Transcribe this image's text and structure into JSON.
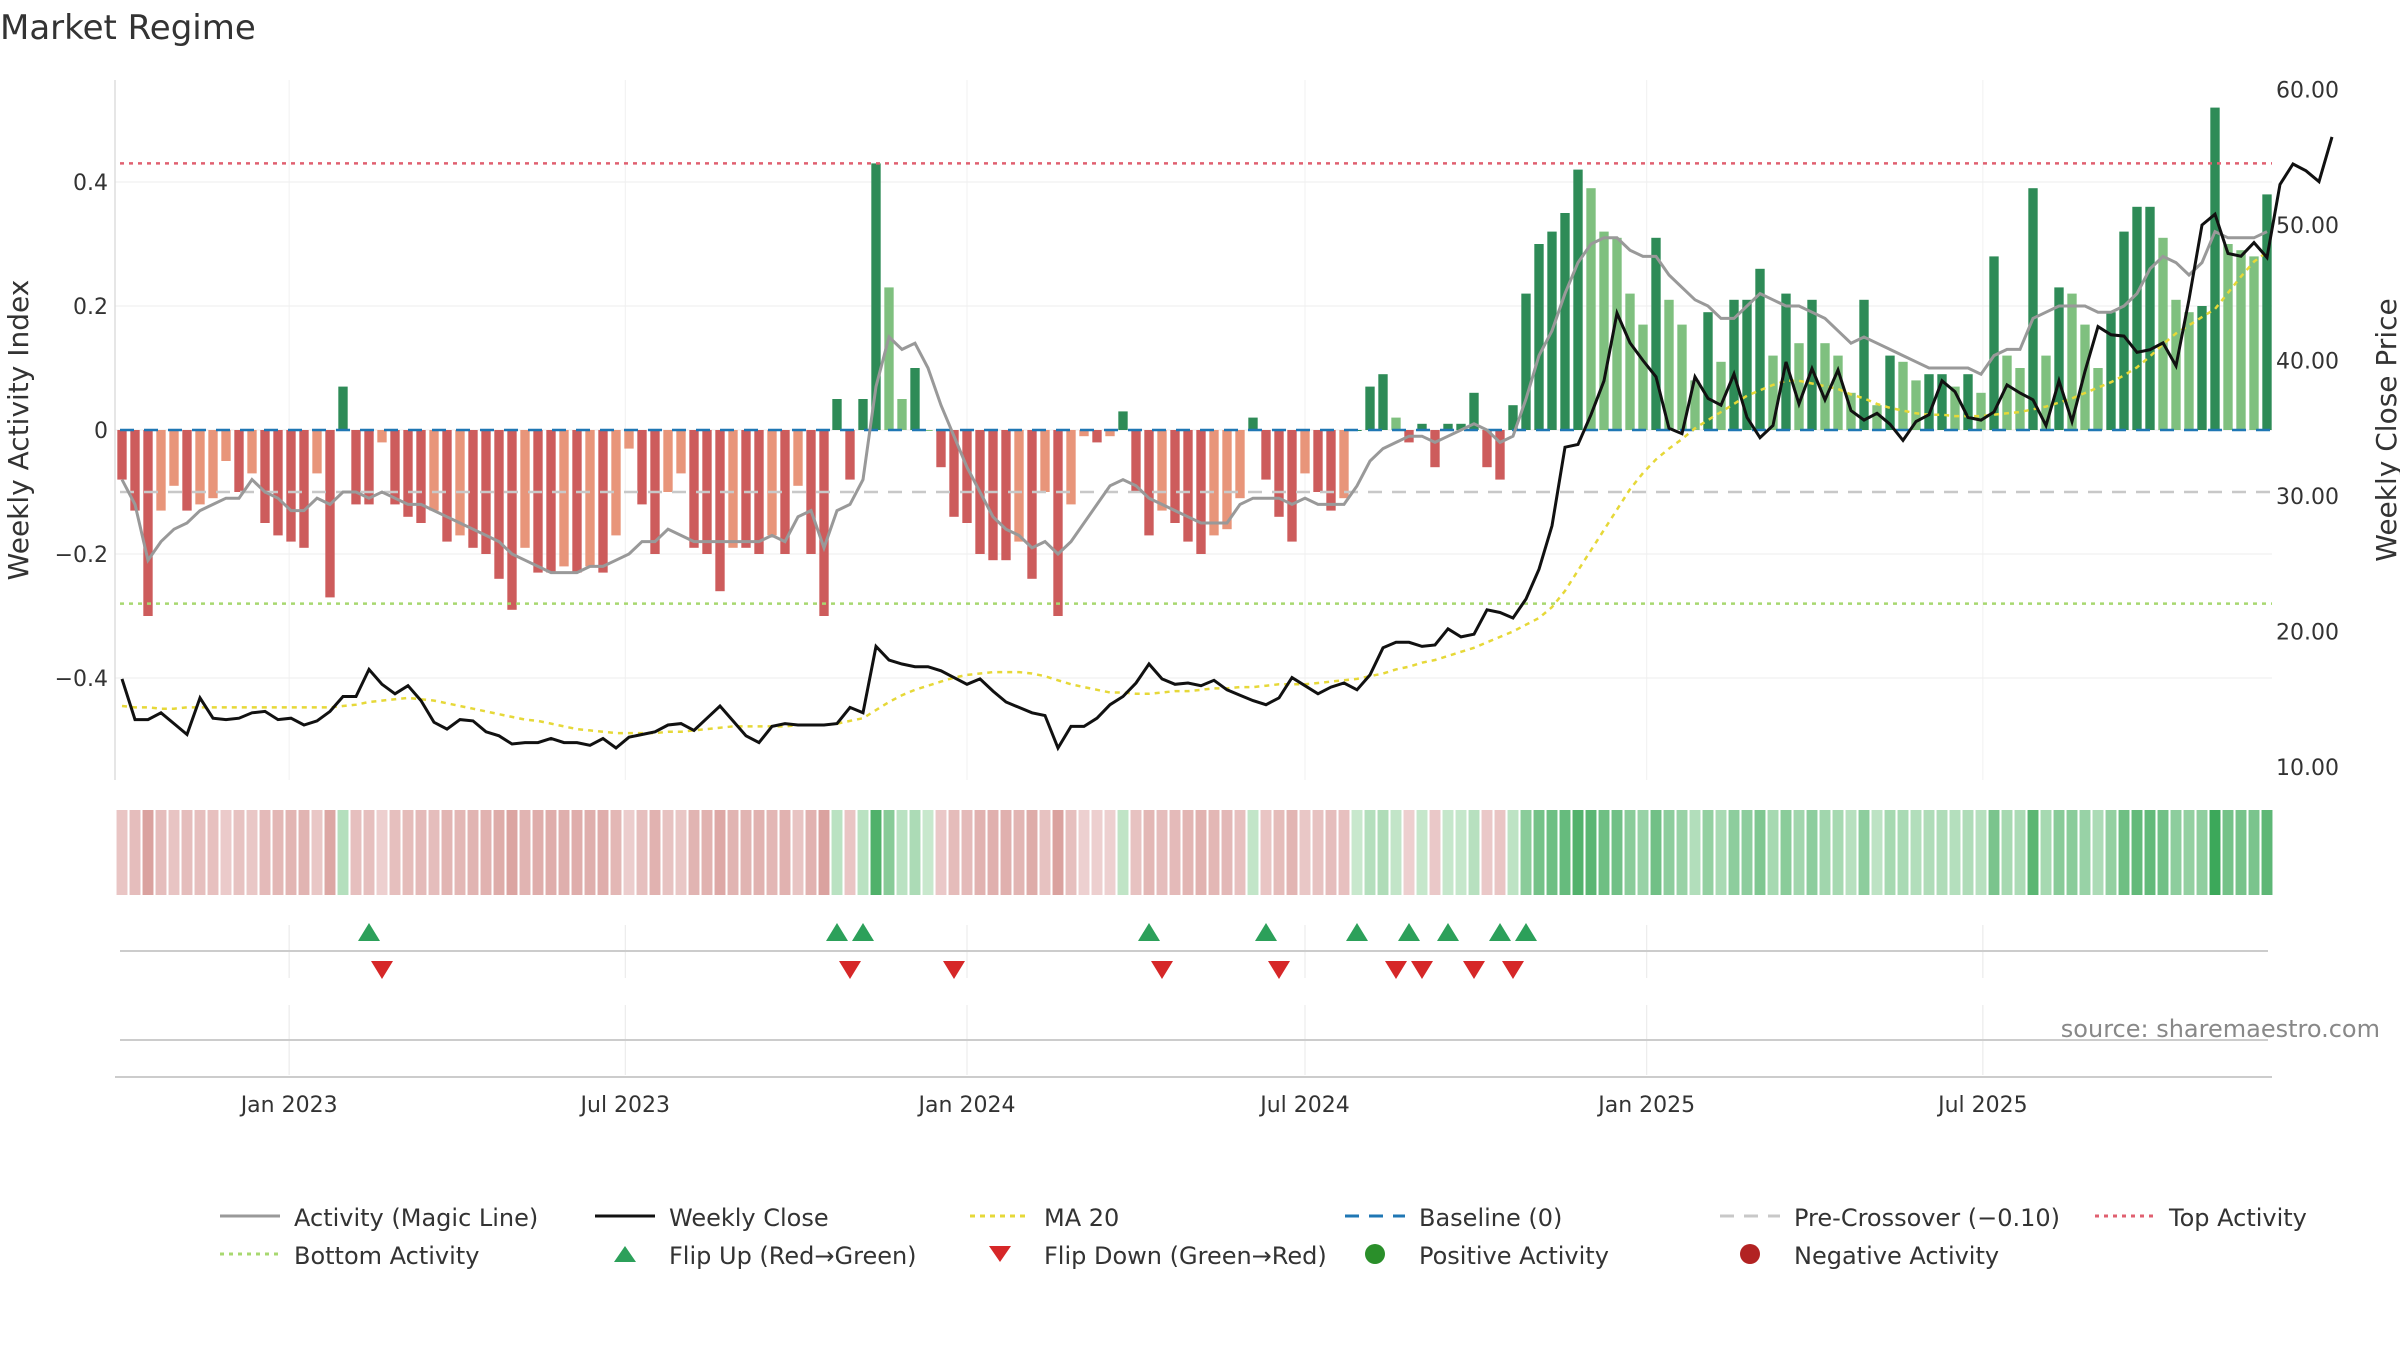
{
  "title": "Market Regime",
  "source": "source: sharemaestro.com",
  "colors": {
    "bar_pos_strong": "#2e8b57",
    "bar_pos_weak": "#7fc07f",
    "bar_neg_strong": "#cd5c5c",
    "bar_neg_weak": "#e8957a",
    "magic_line": "#999999",
    "weekly_close": "#111111",
    "ma20": "#e6d838",
    "baseline": "#1f77b4",
    "pre_crossover": "#c8c8c8",
    "top_activity": "#e06070",
    "bottom_activity": "#a8d870",
    "flip_up": "#2ca05a",
    "flip_down": "#d62728",
    "positive": "#2a8f2a",
    "negative": "#b22222"
  },
  "legend": [
    {
      "key": "magic",
      "label": "Activity (Magic Line)",
      "icon": "solid-line-icon"
    },
    {
      "key": "close",
      "label": "Weekly Close",
      "icon": "solid-line-icon"
    },
    {
      "key": "ma20",
      "label": "MA 20",
      "icon": "dotted-line-icon"
    },
    {
      "key": "baseline",
      "label": "Baseline (0)",
      "icon": "dashed-line-icon"
    },
    {
      "key": "pre",
      "label": "Pre-Crossover (−0.10)",
      "icon": "dashed-line-icon"
    },
    {
      "key": "top",
      "label": "Top Activity",
      "icon": "dotted-line-icon"
    },
    {
      "key": "bottom",
      "label": "Bottom Activity",
      "icon": "dotted-line-icon"
    },
    {
      "key": "flipup",
      "label": "Flip Up (Red→Green)",
      "icon": "triangle-up-icon"
    },
    {
      "key": "flipdown",
      "label": "Flip Down (Green→Red)",
      "icon": "triangle-down-icon"
    },
    {
      "key": "pos",
      "label": "Positive Activity",
      "icon": "circle-icon"
    },
    {
      "key": "neg",
      "label": "Negative Activity",
      "icon": "circle-icon"
    }
  ],
  "chart_data": {
    "type": "bar",
    "title": "Market Regime",
    "x_start": "2022-10-03",
    "x_interval_days": 7,
    "x_ticks": [
      "Jan 2023",
      "Jul 2023",
      "Jan 2024",
      "Jul 2024",
      "Jan 2025",
      "Jul 2025"
    ],
    "x_tick_dates": [
      "2023-01-01",
      "2023-07-01",
      "2024-01-01",
      "2024-07-01",
      "2025-01-01",
      "2025-07-01"
    ],
    "y_left": {
      "label": "Weekly Activity Index",
      "ticks": [
        -0.4,
        -0.2,
        0,
        0.2,
        0.4
      ],
      "tick_labels": [
        "−0.4",
        "−0.2",
        "0",
        "0.2",
        "0.4"
      ],
      "range": [
        -0.565,
        0.565
      ]
    },
    "y_right": {
      "label": "Weekly Close Price",
      "ticks": [
        10,
        20,
        30,
        40,
        50,
        60
      ],
      "tick_labels": [
        "10.00",
        "20.00",
        "30.00",
        "40.00",
        "50.00",
        "60.00"
      ],
      "range": [
        10,
        60
      ]
    },
    "reference_lines": {
      "baseline": 0,
      "pre_crossover": -0.1,
      "top_activity": 0.43,
      "bottom_activity": -0.28
    },
    "activity": [
      -0.08,
      -0.13,
      -0.3,
      -0.13,
      -0.09,
      -0.13,
      -0.12,
      -0.11,
      -0.05,
      -0.1,
      -0.07,
      -0.15,
      -0.17,
      -0.18,
      -0.19,
      -0.07,
      -0.27,
      0.07,
      -0.12,
      -0.12,
      -0.02,
      -0.12,
      -0.14,
      -0.15,
      -0.13,
      -0.18,
      -0.17,
      -0.19,
      -0.2,
      -0.24,
      -0.29,
      -0.19,
      -0.23,
      -0.23,
      -0.22,
      -0.23,
      -0.22,
      -0.23,
      -0.17,
      -0.03,
      -0.12,
      -0.2,
      -0.1,
      -0.07,
      -0.19,
      -0.2,
      -0.26,
      -0.19,
      -0.19,
      -0.2,
      -0.17,
      -0.2,
      -0.09,
      -0.2,
      -0.3,
      0.05,
      -0.08,
      0.05,
      0.43,
      0.23,
      0.05,
      0.1,
      0,
      -0.06,
      -0.14,
      -0.15,
      -0.2,
      -0.21,
      -0.21,
      -0.18,
      -0.24,
      -0.1,
      -0.3,
      -0.12,
      -0.01,
      -0.02,
      -0.01,
      0.03,
      -0.1,
      -0.17,
      -0.13,
      -0.15,
      -0.18,
      -0.2,
      -0.17,
      -0.16,
      -0.11,
      0.02,
      -0.08,
      -0.14,
      -0.18,
      -0.07,
      -0.1,
      -0.13,
      -0.11,
      0,
      0.07,
      0.09,
      0.02,
      -0.02,
      0.01,
      -0.06,
      0.01,
      0.01,
      0.06,
      -0.06,
      -0.08,
      0.04,
      0.22,
      0.3,
      0.32,
      0.35,
      0.42,
      0.39,
      0.32,
      0.31,
      0.22,
      0.17,
      0.31,
      0.21,
      0.17,
      0.08,
      0.19,
      0.11,
      0.21,
      0.21,
      0.26,
      0.12,
      0.22,
      0.14,
      0.21,
      0.14,
      0.12,
      0.06,
      0.21,
      0.04,
      0.12,
      0.11,
      0.08,
      0.09,
      0.09,
      0.07,
      0.09,
      0.06,
      0.28,
      0.12,
      0.1,
      0.39,
      0.12,
      0.23,
      0.22,
      0.17,
      0.1,
      0.19,
      0.32,
      0.36,
      0.36,
      0.31,
      0.21,
      0.19,
      0.2,
      0.52,
      0.3,
      0.29,
      0.28,
      0.38
    ],
    "magic_line": [
      -0.08,
      -0.12,
      -0.21,
      -0.18,
      -0.16,
      -0.15,
      -0.13,
      -0.12,
      -0.11,
      -0.11,
      -0.08,
      -0.1,
      -0.11,
      -0.13,
      -0.13,
      -0.11,
      -0.12,
      -0.1,
      -0.1,
      -0.11,
      -0.1,
      -0.11,
      -0.12,
      -0.12,
      -0.13,
      -0.14,
      -0.15,
      -0.16,
      -0.17,
      -0.18,
      -0.2,
      -0.21,
      -0.22,
      -0.23,
      -0.23,
      -0.23,
      -0.22,
      -0.22,
      -0.21,
      -0.2,
      -0.18,
      -0.18,
      -0.16,
      -0.17,
      -0.18,
      -0.18,
      -0.18,
      -0.18,
      -0.18,
      -0.18,
      -0.17,
      -0.18,
      -0.14,
      -0.13,
      -0.19,
      -0.13,
      -0.12,
      -0.08,
      0.07,
      0.15,
      0.13,
      0.14,
      0.1,
      0.04,
      -0.01,
      -0.06,
      -0.1,
      -0.14,
      -0.16,
      -0.17,
      -0.19,
      -0.18,
      -0.2,
      -0.18,
      -0.15,
      -0.12,
      -0.09,
      -0.08,
      -0.09,
      -0.11,
      -0.12,
      -0.13,
      -0.14,
      -0.15,
      -0.15,
      -0.15,
      -0.12,
      -0.11,
      -0.11,
      -0.11,
      -0.12,
      -0.11,
      -0.12,
      -0.12,
      -0.12,
      -0.09,
      -0.05,
      -0.03,
      -0.02,
      -0.01,
      -0.01,
      -0.02,
      -0.01,
      0,
      0.01,
      0,
      -0.02,
      -0.01,
      0.05,
      0.12,
      0.16,
      0.22,
      0.27,
      0.3,
      0.31,
      0.31,
      0.29,
      0.28,
      0.28,
      0.25,
      0.23,
      0.21,
      0.2,
      0.18,
      0.18,
      0.2,
      0.22,
      0.21,
      0.2,
      0.2,
      0.19,
      0.18,
      0.16,
      0.14,
      0.15,
      0.14,
      0.13,
      0.12,
      0.11,
      0.1,
      0.1,
      0.1,
      0.1,
      0.09,
      0.12,
      0.13,
      0.13,
      0.18,
      0.19,
      0.2,
      0.2,
      0.2,
      0.19,
      0.19,
      0.2,
      0.22,
      0.26,
      0.28,
      0.27,
      0.25,
      0.27,
      0.32,
      0.31,
      0.31,
      0.31,
      0.32
    ],
    "weekly_close": [
      16.5,
      13.5,
      13.5,
      14.0,
      13.2,
      12.4,
      15.1,
      13.6,
      13.5,
      13.6,
      14.0,
      14.1,
      13.5,
      13.6,
      13.1,
      13.4,
      14.1,
      15.2,
      15.2,
      17.2,
      16.1,
      15.4,
      16.0,
      14.9,
      13.3,
      12.8,
      13.5,
      13.4,
      12.6,
      12.3,
      11.7,
      11.8,
      11.8,
      12.1,
      11.8,
      11.8,
      11.6,
      12.1,
      11.4,
      12.2,
      12.4,
      12.6,
      13.1,
      13.2,
      12.7,
      13.6,
      14.5,
      13.4,
      12.3,
      11.8,
      13.0,
      13.2,
      13.1,
      13.1,
      13.1,
      13.2,
      14.4,
      14.0,
      18.9,
      17.9,
      17.6,
      17.4,
      17.4,
      17.1,
      16.6,
      16.1,
      16.5,
      15.6,
      14.8,
      14.4,
      14.0,
      13.8,
      11.4,
      13.0,
      13.0,
      13.6,
      14.6,
      15.2,
      16.2,
      17.6,
      16.5,
      16.1,
      16.2,
      16.0,
      16.4,
      15.7,
      15.3,
      14.9,
      14.6,
      15.1,
      16.6,
      16.0,
      15.4,
      15.9,
      16.2,
      15.7,
      16.8,
      18.8,
      19.2,
      19.2,
      18.9,
      19.0,
      20.2,
      19.6,
      19.8,
      21.6,
      21.4,
      21.0,
      22.4,
      24.6,
      27.8,
      33.6,
      33.8,
      36.0,
      38.5,
      43.5,
      41.3,
      40.0,
      38.8,
      35.0,
      34.6,
      38.8,
      37.2,
      36.7,
      39.0,
      35.8,
      34.3,
      35.2,
      39.9,
      36.8,
      39.4,
      37.1,
      39.3,
      36.3,
      35.6,
      36.1,
      35.3,
      34.1,
      35.5,
      36.0,
      38.5,
      37.7,
      35.8,
      35.6,
      36.2,
      38.2,
      37.6,
      37.1,
      35.2,
      38.5,
      35.5,
      39.2,
      42.5,
      41.9,
      41.8,
      40.6,
      40.8,
      41.3,
      39.6,
      44.5,
      50.0,
      50.8,
      47.9,
      47.7,
      48.7,
      47.6,
      53.0,
      54.5,
      54.0,
      53.2,
      56.5
    ],
    "ma20": [
      14.5,
      14.4,
      14.4,
      14.3,
      14.3,
      14.4,
      14.4,
      14.4,
      14.4,
      14.4,
      14.4,
      14.4,
      14.4,
      14.4,
      14.4,
      14.4,
      14.4,
      14.5,
      14.6,
      14.8,
      14.9,
      15.0,
      15.1,
      15.0,
      14.9,
      14.7,
      14.5,
      14.3,
      14.1,
      13.9,
      13.7,
      13.5,
      13.4,
      13.2,
      13.0,
      12.8,
      12.7,
      12.6,
      12.5,
      12.5,
      12.5,
      12.5,
      12.6,
      12.6,
      12.7,
      12.8,
      12.9,
      13.0,
      13.0,
      13.0,
      13.0,
      13.0,
      13.1,
      13.1,
      13.1,
      13.2,
      13.4,
      13.6,
      14.2,
      14.8,
      15.3,
      15.7,
      16.0,
      16.3,
      16.6,
      16.8,
      16.9,
      17.0,
      17.0,
      17.0,
      16.9,
      16.7,
      16.4,
      16.1,
      15.9,
      15.7,
      15.5,
      15.5,
      15.4,
      15.4,
      15.5,
      15.6,
      15.6,
      15.7,
      15.8,
      15.8,
      15.9,
      15.9,
      16.0,
      16.1,
      16.1,
      16.1,
      16.2,
      16.3,
      16.4,
      16.5,
      16.7,
      16.9,
      17.2,
      17.4,
      17.7,
      17.9,
      18.2,
      18.5,
      18.8,
      19.2,
      19.6,
      20.0,
      20.5,
      21.0,
      21.8,
      23.0,
      24.5,
      26.0,
      27.5,
      29.0,
      30.5,
      31.7,
      32.7,
      33.5,
      34.2,
      35.0,
      35.6,
      36.2,
      36.8,
      37.4,
      37.8,
      38.2,
      38.5,
      38.5,
      38.3,
      38.1,
      37.9,
      37.5,
      37.2,
      36.8,
      36.5,
      36.3,
      36.1,
      36.0,
      36.0,
      35.9,
      35.9,
      35.9,
      36.0,
      36.1,
      36.2,
      36.4,
      36.6,
      36.9,
      37.2,
      37.6,
      38.0,
      38.4,
      38.9,
      39.5,
      40.3,
      41.2,
      42.0,
      42.6,
      43.2,
      43.8,
      45.0,
      46.2,
      47.3,
      48.0
    ],
    "flip_up_weeks": [
      19,
      55,
      57,
      79,
      88,
      95,
      99,
      102,
      106,
      108
    ],
    "flip_down_weeks": [
      20,
      56,
      64,
      80,
      89,
      98,
      100,
      104,
      107
    ],
    "regime_band": "per-week strip: greens for positive activity, reds for negative activity (darker = stronger)"
  }
}
